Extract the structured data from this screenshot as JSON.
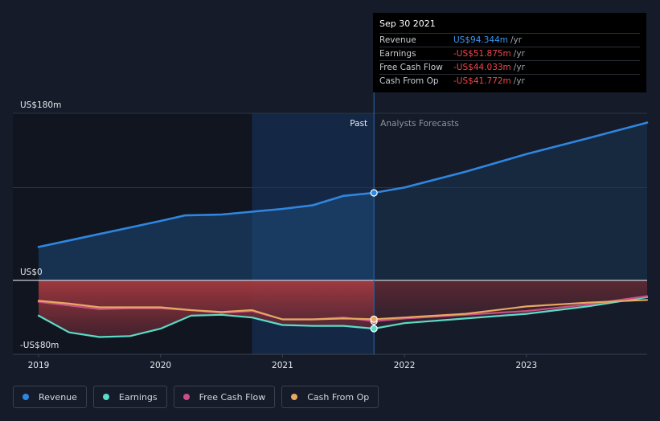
{
  "tooltip": {
    "date": "Sep 30 2021",
    "rows": [
      {
        "label": "Revenue",
        "value": "US$94.344m",
        "unit": "/yr"
      },
      {
        "label": "Earnings",
        "value": "-US$51.875m",
        "unit": "/yr"
      },
      {
        "label": "Free Cash Flow",
        "value": "-US$44.033m",
        "unit": "/yr"
      },
      {
        "label": "Cash From Op",
        "value": "-US$41.772m",
        "unit": "/yr"
      }
    ]
  },
  "legend": [
    {
      "label": "Revenue",
      "color": "#2f86e1"
    },
    {
      "label": "Earnings",
      "color": "#5cdbc8"
    },
    {
      "label": "Free Cash Flow",
      "color": "#c94f86"
    },
    {
      "label": "Cash From Op",
      "color": "#e7a960"
    }
  ],
  "chart_data": {
    "type": "line",
    "title": "",
    "xlabel": "",
    "ylabel": "",
    "y_labels": [
      "US$180m",
      "US$0",
      "-US$80m"
    ],
    "ylim": [
      -80,
      180
    ],
    "xlim": [
      2019.0,
      2023.99
    ],
    "x_ticks": [
      2019,
      2020,
      2021,
      2022,
      2023
    ],
    "x_tick_labels": [
      "2019",
      "2020",
      "2021",
      "2022",
      "2023"
    ],
    "past_label": "Past",
    "forecast_label": "Analysts Forecasts",
    "highlight_x": 2021.75,
    "highlight_start": 2020.75,
    "series": [
      {
        "name": "Revenue",
        "color": "#2f86e1",
        "points": [
          [
            2019.0,
            36
          ],
          [
            2019.25,
            43
          ],
          [
            2019.5,
            50
          ],
          [
            2019.75,
            57
          ],
          [
            2020.0,
            64
          ],
          [
            2020.2,
            70
          ],
          [
            2020.5,
            71
          ],
          [
            2020.75,
            74
          ],
          [
            2021.0,
            77
          ],
          [
            2021.25,
            81
          ],
          [
            2021.5,
            91
          ],
          [
            2021.75,
            94.3
          ],
          [
            2022.0,
            100
          ],
          [
            2022.5,
            117
          ],
          [
            2023.0,
            136
          ],
          [
            2023.5,
            153
          ],
          [
            2023.99,
            170
          ]
        ]
      },
      {
        "name": "Earnings",
        "color": "#5cdbc8",
        "points": [
          [
            2019.0,
            -38
          ],
          [
            2019.25,
            -56
          ],
          [
            2019.5,
            -61
          ],
          [
            2019.75,
            -60
          ],
          [
            2020.0,
            -52
          ],
          [
            2020.25,
            -38
          ],
          [
            2020.5,
            -37
          ],
          [
            2020.75,
            -40
          ],
          [
            2021.0,
            -48
          ],
          [
            2021.25,
            -49
          ],
          [
            2021.5,
            -49
          ],
          [
            2021.75,
            -51.9
          ],
          [
            2022.0,
            -46
          ],
          [
            2022.5,
            -41
          ],
          [
            2023.0,
            -36
          ],
          [
            2023.5,
            -28
          ],
          [
            2023.99,
            -18
          ]
        ]
      },
      {
        "name": "Free Cash Flow",
        "color": "#c94f86",
        "points": [
          [
            2019.0,
            -23
          ],
          [
            2019.25,
            -27
          ],
          [
            2019.5,
            -31
          ],
          [
            2019.75,
            -30
          ],
          [
            2020.0,
            -30
          ],
          [
            2020.25,
            -32
          ],
          [
            2020.5,
            -35
          ],
          [
            2020.75,
            -33
          ],
          [
            2021.0,
            -42
          ],
          [
            2021.25,
            -42
          ],
          [
            2021.5,
            -40
          ],
          [
            2021.75,
            -44
          ],
          [
            2022.0,
            -41
          ],
          [
            2022.5,
            -37
          ],
          [
            2023.0,
            -33
          ],
          [
            2023.5,
            -26
          ],
          [
            2023.99,
            -17
          ]
        ]
      },
      {
        "name": "Cash From Op",
        "color": "#e7a960",
        "points": [
          [
            2019.0,
            -22
          ],
          [
            2019.25,
            -25
          ],
          [
            2019.5,
            -29
          ],
          [
            2019.75,
            -29
          ],
          [
            2020.0,
            -29
          ],
          [
            2020.25,
            -32
          ],
          [
            2020.5,
            -34
          ],
          [
            2020.75,
            -32
          ],
          [
            2021.0,
            -42
          ],
          [
            2021.25,
            -42
          ],
          [
            2021.5,
            -41
          ],
          [
            2021.75,
            -41.8
          ],
          [
            2022.0,
            -40
          ],
          [
            2022.5,
            -36
          ],
          [
            2023.0,
            -28
          ],
          [
            2023.5,
            -24
          ],
          [
            2023.99,
            -21
          ]
        ]
      }
    ]
  }
}
